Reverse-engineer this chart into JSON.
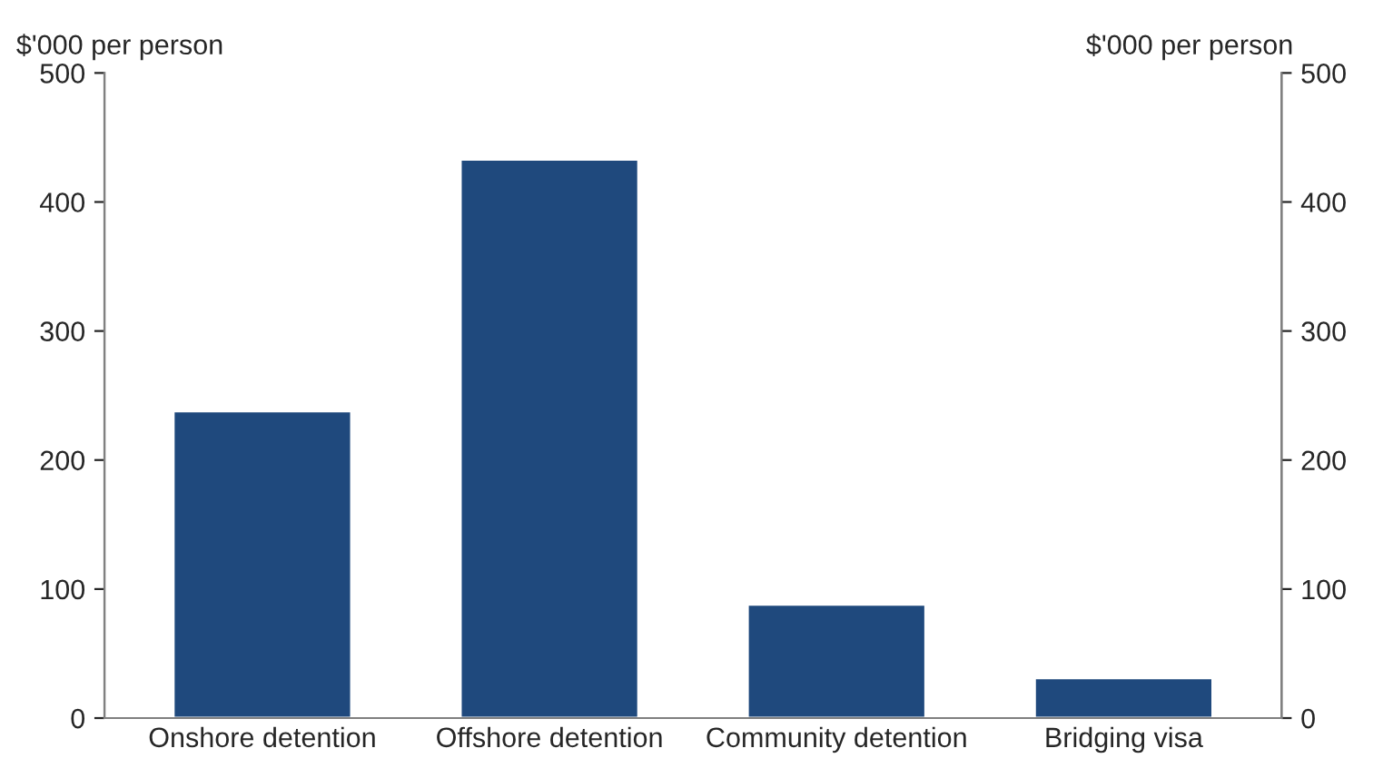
{
  "chart_data": {
    "type": "bar",
    "ylabel": "$'000 per person",
    "y2label": "$'000 per person",
    "categories": [
      "Onshore detention",
      "Offshore detention",
      "Community detention",
      "Bridging visa"
    ],
    "values": [
      238,
      433,
      88,
      31
    ],
    "color": "#1f497d",
    "ylim": [
      0,
      500
    ],
    "yticks": [
      0,
      100,
      200,
      300,
      400,
      500
    ],
    "y2lim": [
      0,
      500
    ],
    "y2ticks": [
      0,
      100,
      200,
      300,
      400,
      500
    ],
    "grid": false,
    "legend": false
  }
}
